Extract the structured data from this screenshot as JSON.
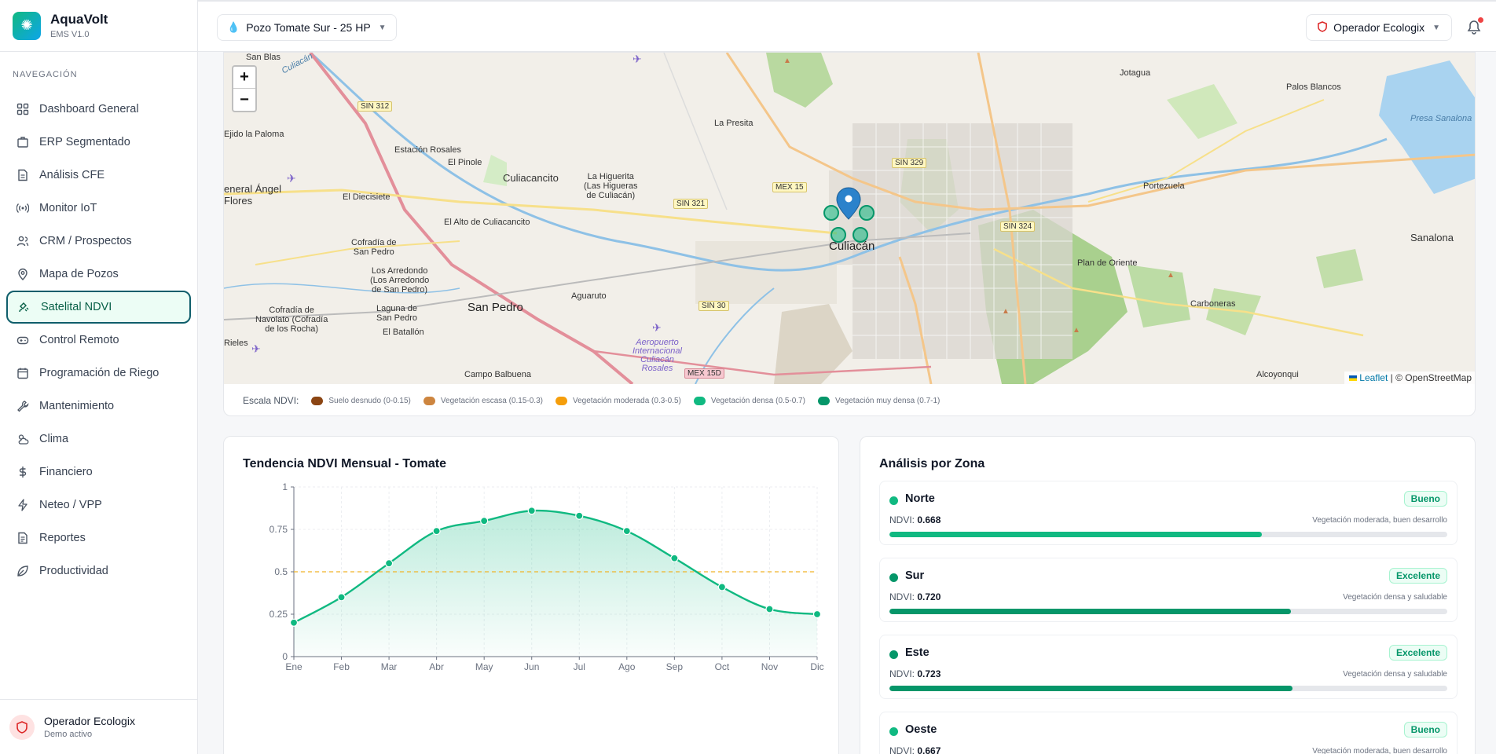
{
  "brand": {
    "name": "AquaVolt",
    "version": "EMS V1.0"
  },
  "nav": {
    "title": "NAVEGACIÓN",
    "items": [
      {
        "label": "Dashboard General",
        "icon": "grid-icon"
      },
      {
        "label": "ERP Segmentado",
        "icon": "building-icon"
      },
      {
        "label": "Análisis CFE",
        "icon": "document-icon"
      },
      {
        "label": "Monitor IoT",
        "icon": "signal-icon"
      },
      {
        "label": "CRM / Prospectos",
        "icon": "users-icon"
      },
      {
        "label": "Mapa de Pozos",
        "icon": "map-pin-icon"
      },
      {
        "label": "Satelital NDVI",
        "icon": "satellite-icon",
        "active": true
      },
      {
        "label": "Control Remoto",
        "icon": "gamepad-icon"
      },
      {
        "label": "Programación de Riego",
        "icon": "calendar-icon"
      },
      {
        "label": "Mantenimiento",
        "icon": "wrench-icon"
      },
      {
        "label": "Clima",
        "icon": "cloud-sun-icon"
      },
      {
        "label": "Financiero",
        "icon": "dollar-icon"
      },
      {
        "label": "Neteo / VPP",
        "icon": "bolt-icon"
      },
      {
        "label": "Reportes",
        "icon": "report-icon"
      },
      {
        "label": "Productividad",
        "icon": "leaf-icon"
      }
    ]
  },
  "footer": {
    "name": "Operador Ecologix",
    "status": "Demo activo"
  },
  "header": {
    "well": "Pozo Tomate Sur - 25 HP",
    "operator": "Operador Ecologix"
  },
  "map": {
    "zoom_in": "+",
    "zoom_out": "−",
    "attribution_leaflet": "Leaflet",
    "attribution_osm": "| © OpenStreetMap",
    "labels": {
      "san_blas": "San Blas",
      "culiacan_river": "Culiacán",
      "sin312": "SIN 312",
      "ejido_paloma": "Ejido la Paloma",
      "estacion_rosales": "Estación Rosales",
      "el_pinole": "El Pinole",
      "culiacancito": "Culiacancito",
      "la_higuerita": "La Higuerita\n(Las Higueras\nde Culiacán)",
      "la_presita": "La Presita",
      "general_angel_flores": "eneral Ángel\nFlores",
      "el_diecisiete": "El Diecisiete",
      "sin321": "SIN 321",
      "mex15": "MEX 15",
      "sin329": "SIN 329",
      "el_alto": "El Alto de Culiacancito",
      "cofradia_san_pedro": "Cofradía de\nSan Pedro",
      "los_arredondo": "Los Arredondo\n(Los Arredondo\nde San Pedro)",
      "culiacan": "Culiacán",
      "sin324": "SIN 324",
      "jotagua": "Jotagua",
      "palos_blancos": "Palos Blancos",
      "presa_sanalona": "Presa Sanalona",
      "portezuela": "Portezuela",
      "sanalona": "Sanalona",
      "plan_oriente": "Plan de Oriente",
      "carboneras": "Carboneras",
      "cofradia_navolato": "Cofradía de\nNavolato (Cofradía\nde los Rocha)",
      "laguna_san_pedro": "Laguna de\nSan Pedro",
      "san_pedro": "San Pedro",
      "aguaruto": "Aguaruto",
      "sin30": "SIN 30",
      "el_batallon": "El Batallón",
      "rieles": "Rieles",
      "aeropuerto": "Aeropuerto\nInternacional\nCuliacán\nRosales",
      "mex15d": "MEX 15D",
      "campo_balbuena": "Campo Balbuena",
      "alcoyonqui": "Alcoyonqui"
    }
  },
  "legend": {
    "title": "Escala NDVI:",
    "items": [
      {
        "label": "Suelo desnudo (0-0.15)",
        "color": "#8b4513"
      },
      {
        "label": "Vegetación escasa (0.15-0.3)",
        "color": "#cd853f"
      },
      {
        "label": "Vegetación moderada (0.3-0.5)",
        "color": "#f59e0b"
      },
      {
        "label": "Vegetación densa (0.5-0.7)",
        "color": "#10b981"
      },
      {
        "label": "Vegetación muy densa (0.7-1)",
        "color": "#059669"
      }
    ]
  },
  "chart_title": "Tendencia NDVI Mensual - Tomate",
  "chart_data": {
    "type": "area",
    "title": "Tendencia NDVI Mensual - Tomate",
    "categories": [
      "Ene",
      "Feb",
      "Mar",
      "Abr",
      "May",
      "Jun",
      "Jul",
      "Ago",
      "Sep",
      "Oct",
      "Nov",
      "Dic"
    ],
    "values": [
      0.2,
      0.35,
      0.55,
      0.74,
      0.8,
      0.86,
      0.83,
      0.74,
      0.58,
      0.41,
      0.28,
      0.25
    ],
    "reference_line": 0.5,
    "ylim": [
      0,
      1
    ],
    "yticks": [
      0,
      0.25,
      0.5,
      0.75,
      1
    ],
    "ytick_labels": [
      "0",
      "0.25",
      "0.5",
      "0.75",
      "1"
    ],
    "color": "#10b981",
    "reference_color": "#f0b429",
    "grid": true
  },
  "zones_title": "Análisis por Zona",
  "zones": [
    {
      "name": "Norte",
      "badge": "Bueno",
      "ndvi_label": "NDVI:",
      "ndvi": "0.668",
      "value": 0.668,
      "desc": "Vegetación moderada, buen desarrollo",
      "color": "#10b981"
    },
    {
      "name": "Sur",
      "badge": "Excelente",
      "ndvi_label": "NDVI:",
      "ndvi": "0.720",
      "value": 0.72,
      "desc": "Vegetación densa y saludable",
      "color": "#059669"
    },
    {
      "name": "Este",
      "badge": "Excelente",
      "ndvi_label": "NDVI:",
      "ndvi": "0.723",
      "value": 0.723,
      "desc": "Vegetación densa y saludable",
      "color": "#059669"
    },
    {
      "name": "Oeste",
      "badge": "Bueno",
      "ndvi_label": "NDVI:",
      "ndvi": "0.667",
      "value": 0.667,
      "desc": "Vegetación moderada, buen desarrollo",
      "color": "#10b981"
    }
  ]
}
